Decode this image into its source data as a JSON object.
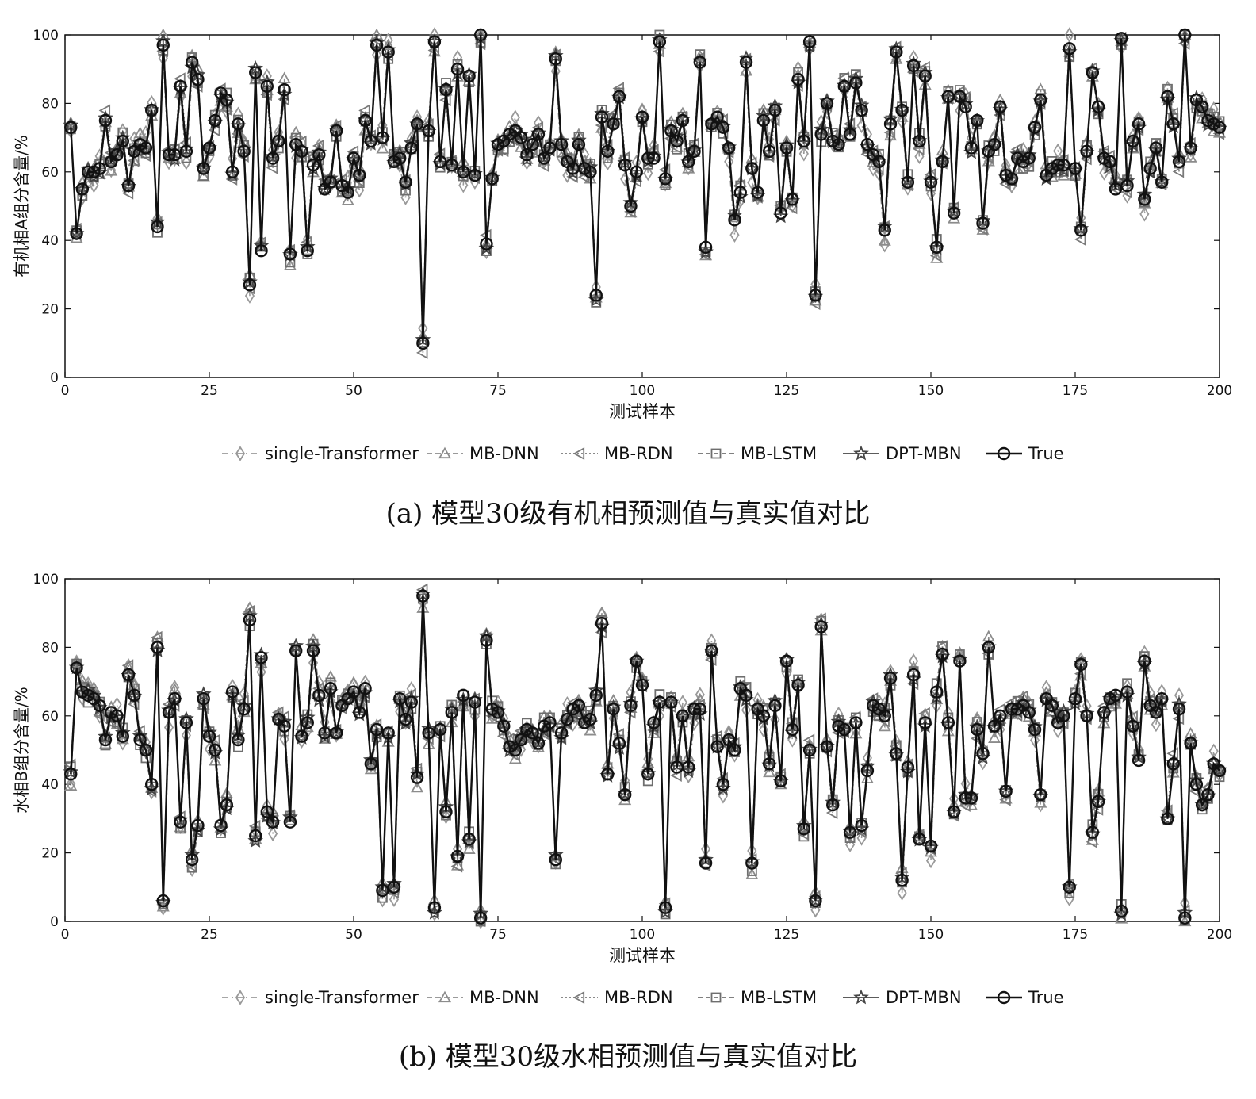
{
  "captions": {
    "a": "(a) 模型30级有机相预测值与真实值对比",
    "b": "(b) 模型30级水相预测值与真实值对比"
  },
  "legend_items": [
    "single-Transformer",
    "MB-DNN",
    "MB-RDN",
    "MB-LSTM",
    "DPT-MBN",
    "True"
  ],
  "series_style": {
    "single-Transformer": {
      "color": "#999999",
      "dash": "8 4 2 4",
      "marker": "diamond"
    },
    "MB-DNN": {
      "color": "#8c8c8c",
      "dash": "7 4",
      "marker": "triangle-up"
    },
    "MB-RDN": {
      "color": "#7a7a7a",
      "dash": "2 3",
      "marker": "triangle-left"
    },
    "MB-LSTM": {
      "color": "#6e6e6e",
      "dash": "6 4",
      "marker": "square"
    },
    "DPT-MBN": {
      "color": "#444444",
      "dash": "none",
      "marker": "star"
    },
    "True": {
      "color": "#111111",
      "dash": "none",
      "marker": "circle"
    }
  },
  "chart_data": [
    {
      "type": "line",
      "panel": "a",
      "xlabel": "测试样本",
      "ylabel": "有机相A组分含量/%",
      "xlim": [
        0,
        200
      ],
      "ylim": [
        0,
        100
      ],
      "xticks": [
        0,
        25,
        50,
        75,
        100,
        125,
        150,
        175,
        200
      ],
      "yticks": [
        0,
        20,
        40,
        60,
        80,
        100
      ],
      "grid": false,
      "legend": "bottom",
      "true_values": [
        73,
        42,
        55,
        60,
        60,
        61,
        75,
        63,
        65,
        69,
        56,
        66,
        68,
        67,
        78,
        44,
        97,
        65,
        65,
        85,
        66,
        92,
        87,
        61,
        67,
        75,
        83,
        81,
        60,
        74,
        66,
        27,
        89,
        37,
        85,
        64,
        69,
        84,
        36,
        68,
        66,
        37,
        62,
        65,
        55,
        57,
        72,
        56,
        54,
        64,
        59,
        75,
        69,
        97,
        70,
        95,
        63,
        64,
        57,
        67,
        74,
        10,
        72,
        98,
        63,
        84,
        62,
        90,
        60,
        88,
        59,
        100,
        39,
        58,
        68,
        69,
        71,
        72,
        70,
        65,
        68,
        71,
        64,
        67,
        93,
        68,
        63,
        61,
        68,
        61,
        60,
        24,
        76,
        66,
        74,
        82,
        62,
        50,
        60,
        76,
        64,
        64,
        98,
        58,
        72,
        69,
        75,
        63,
        66,
        92,
        38,
        74,
        76,
        73,
        67,
        46,
        54,
        92,
        61,
        54,
        75,
        66,
        78,
        48,
        67,
        52,
        87,
        69,
        98,
        24,
        71,
        80,
        69,
        68,
        85,
        71,
        86,
        78,
        68,
        65,
        63,
        43,
        74,
        95,
        78,
        57,
        91,
        69,
        88,
        57,
        38,
        63,
        82,
        48,
        82,
        79,
        67,
        75,
        45,
        66,
        68,
        79,
        59,
        58,
        64,
        63,
        64,
        73,
        81,
        59,
        61,
        62,
        62,
        96,
        61,
        43,
        66,
        89,
        79,
        64,
        63,
        55,
        99,
        56,
        69,
        74,
        52,
        61,
        67,
        57,
        82,
        74,
        63,
        100,
        67,
        81,
        79,
        75,
        74,
        73
      ],
      "series": [
        {
          "name": "single-Transformer"
        },
        {
          "name": "MB-DNN"
        },
        {
          "name": "MB-RDN"
        },
        {
          "name": "MB-LSTM"
        },
        {
          "name": "DPT-MBN"
        },
        {
          "name": "True"
        }
      ]
    },
    {
      "type": "line",
      "panel": "b",
      "xlabel": "测试样本",
      "ylabel": "水相B组分含量/%",
      "xlim": [
        0,
        200
      ],
      "ylim": [
        0,
        100
      ],
      "xticks": [
        0,
        25,
        50,
        75,
        100,
        125,
        150,
        175,
        200
      ],
      "yticks": [
        0,
        20,
        40,
        60,
        80,
        100
      ],
      "grid": false,
      "legend": "bottom",
      "true_values": [
        43,
        74,
        67,
        66,
        65,
        63,
        53,
        61,
        60,
        54,
        72,
        66,
        53,
        50,
        40,
        80,
        6,
        61,
        65,
        29,
        58,
        18,
        28,
        65,
        54,
        50,
        28,
        34,
        67,
        53,
        62,
        88,
        25,
        77,
        32,
        29,
        59,
        57,
        29,
        79,
        54,
        58,
        79,
        66,
        55,
        68,
        55,
        63,
        65,
        67,
        61,
        68,
        46,
        56,
        9,
        55,
        10,
        65,
        59,
        64,
        42,
        95,
        55,
        4,
        56,
        32,
        61,
        19,
        66,
        24,
        64,
        1,
        82,
        62,
        61,
        57,
        51,
        50,
        53,
        56,
        55,
        52,
        57,
        58,
        18,
        55,
        59,
        62,
        63,
        58,
        59,
        66,
        87,
        43,
        62,
        52,
        37,
        63,
        76,
        69,
        43,
        58,
        64,
        4,
        64,
        45,
        60,
        45,
        62,
        62,
        17,
        79,
        51,
        40,
        53,
        50,
        68,
        66,
        17,
        62,
        60,
        46,
        63,
        41,
        76,
        56,
        69,
        27,
        50,
        6,
        86,
        51,
        34,
        57,
        56,
        26,
        58,
        28,
        44,
        63,
        62,
        60,
        71,
        49,
        12,
        45,
        72,
        24,
        58,
        22,
        67,
        78,
        58,
        32,
        76,
        36,
        36,
        56,
        49,
        80,
        57,
        60,
        38,
        62,
        62,
        63,
        61,
        56,
        37,
        65,
        63,
        58,
        60,
        10,
        65,
        75,
        60,
        26,
        35,
        61,
        65,
        66,
        3,
        67,
        57,
        47,
        76,
        63,
        61,
        65,
        30,
        46,
        62,
        1,
        52,
        40,
        34,
        37,
        46,
        44
      ],
      "series": [
        {
          "name": "single-Transformer"
        },
        {
          "name": "MB-DNN"
        },
        {
          "name": "MB-RDN"
        },
        {
          "name": "MB-LSTM"
        },
        {
          "name": "DPT-MBN"
        },
        {
          "name": "True"
        }
      ]
    }
  ]
}
